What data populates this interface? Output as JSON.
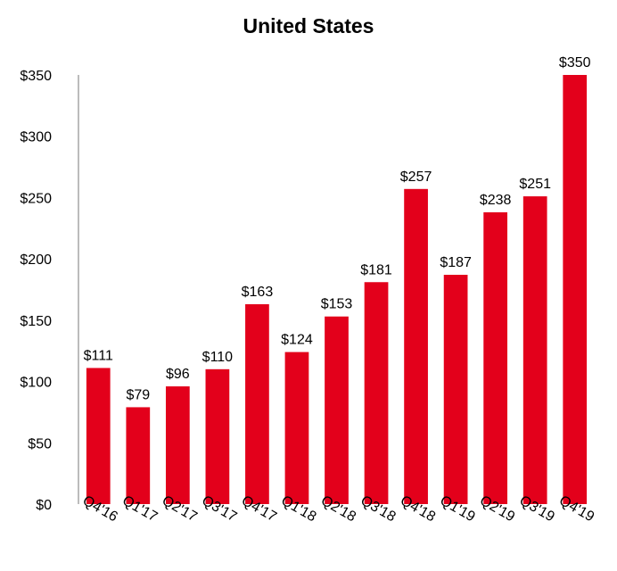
{
  "chart_data": {
    "type": "bar",
    "title": "United States",
    "xlabel": "",
    "ylabel": "",
    "ylim": [
      0,
      350
    ],
    "yticks": [
      "$0",
      "$50",
      "$100",
      "$150",
      "$200",
      "$250",
      "$300",
      "$350"
    ],
    "categories": [
      "Q4'16",
      "Q1'17",
      "Q2'17",
      "Q3'17",
      "Q4'17",
      "Q1'18",
      "Q2'18",
      "Q3'18",
      "Q4'18",
      "Q1'19",
      "Q2'19",
      "Q3'19",
      "Q4'19"
    ],
    "values": [
      111,
      79,
      96,
      110,
      163,
      124,
      153,
      181,
      257,
      187,
      238,
      251,
      350
    ],
    "data_labels": [
      "$111",
      "$79",
      "$96",
      "$110",
      "$163",
      "$124",
      "$153",
      "$181",
      "$257",
      "$187",
      "$238",
      "$251",
      "$350"
    ],
    "bar_color": "#E3001B",
    "grid": false,
    "legend": "none"
  }
}
